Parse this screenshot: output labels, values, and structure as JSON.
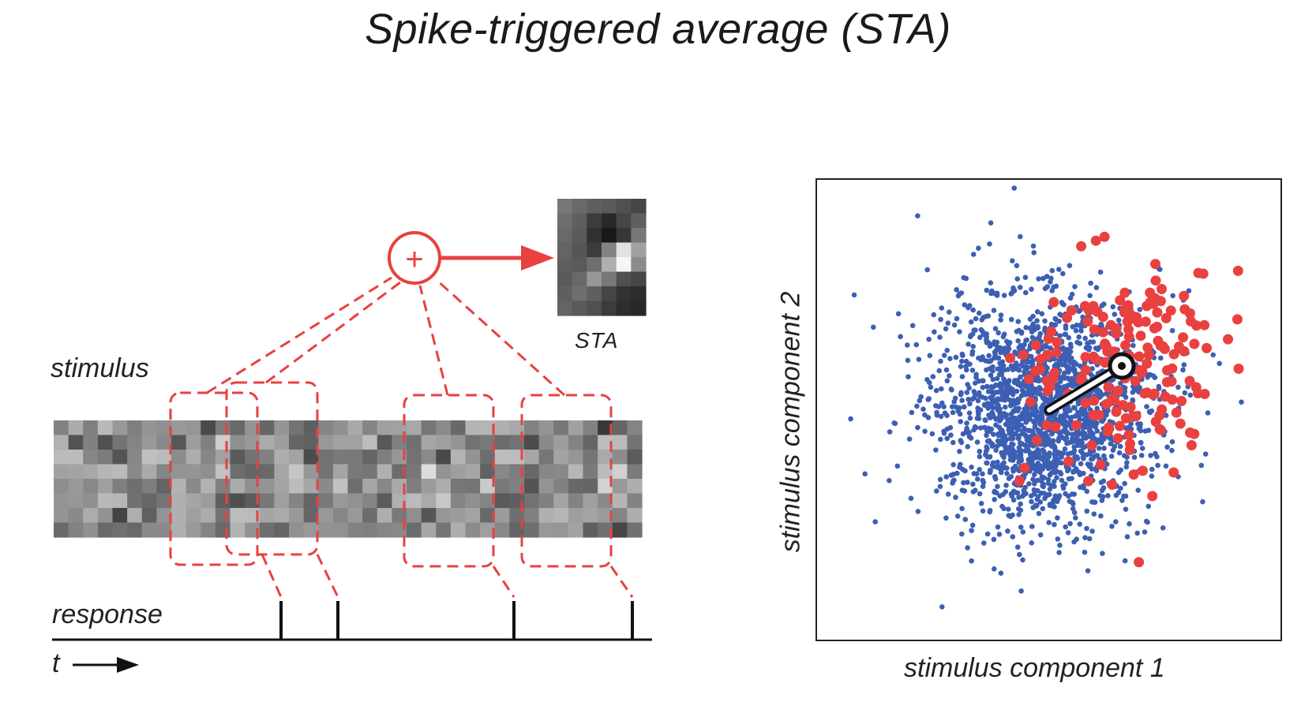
{
  "title": "Spike-triggered average (STA)",
  "left_panel": {
    "stimulus_label": "stimulus",
    "response_label": "response",
    "time_label": "t",
    "sta_label": "STA",
    "sum_symbol": "+"
  },
  "right_panel": {
    "xlabel": "stimulus component 1",
    "ylabel": "stimulus component 2"
  },
  "colors": {
    "accent_red": "#e8413f",
    "raw_dots": "#3d5fb3",
    "spike_dots": "#e8413f",
    "axis": "#222222"
  }
}
